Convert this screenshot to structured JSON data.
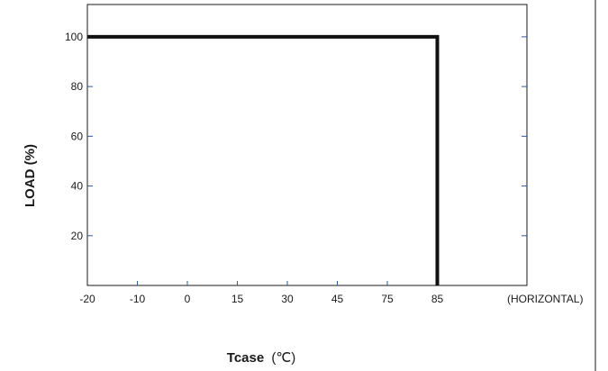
{
  "chart_data": {
    "type": "line",
    "title": "",
    "xlabel": "Tcase",
    "xlabel_unit": "(℃)",
    "ylabel": "LOAD (%)",
    "x_tick_labels": [
      "-20",
      "-10",
      "0",
      "15",
      "30",
      "45",
      "75",
      "85"
    ],
    "x_axis_note": "(HORIZONTAL)",
    "y_ticks": [
      20,
      40,
      60,
      80,
      100
    ],
    "ylim": [
      0,
      113
    ],
    "grid": false,
    "legend": "none",
    "line_color": "#111111",
    "tick_color": "#2a5aa8",
    "series": [
      {
        "points": [
          {
            "x": "-20",
            "y": 100
          },
          {
            "x": "85",
            "y": 100
          },
          {
            "x": "85",
            "y": 0
          }
        ]
      }
    ]
  }
}
